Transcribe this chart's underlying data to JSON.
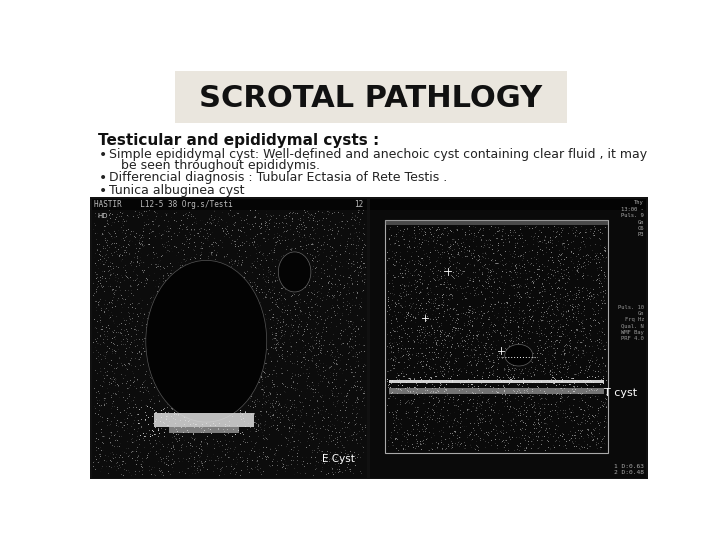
{
  "title": "SCROTAL PATHLOGY",
  "title_box_color": "#eae6de",
  "title_fontsize": 22,
  "title_fontweight": "bold",
  "background_color": "#ffffff",
  "subtitle": "Testicular and epididymal cysts :",
  "subtitle_fontsize": 11,
  "subtitle_fontweight": "bold",
  "bullet1_line1": "Simple epididymal cyst: Well-defined and anechoic cyst containing clear fluid , it may",
  "bullet1_line2": "be seen throughout epididymis.",
  "bullet2": "Differencial diagnosis : Tubular Ectasia of Rete Testis .",
  "bullet3": "Tunica albuginea cyst",
  "bullet_fontsize": 9,
  "bullet_color": "#222222",
  "left_header_text": "HASTIR    L12-5 38 Org.s/Testi",
  "left_image_label": "E Cyst",
  "right_image_label": "T cyst",
  "right_info_top": "Thy\n13:00 -\nPuls. 9\nGn\nC6\nP3",
  "right_info_mid": "Puls. 10\nGn\nFrq Hz\nQual. N\nWMF Bay\nPRF 4.0",
  "right_info_bot": "1 D:0.63\n2 D:0.48"
}
